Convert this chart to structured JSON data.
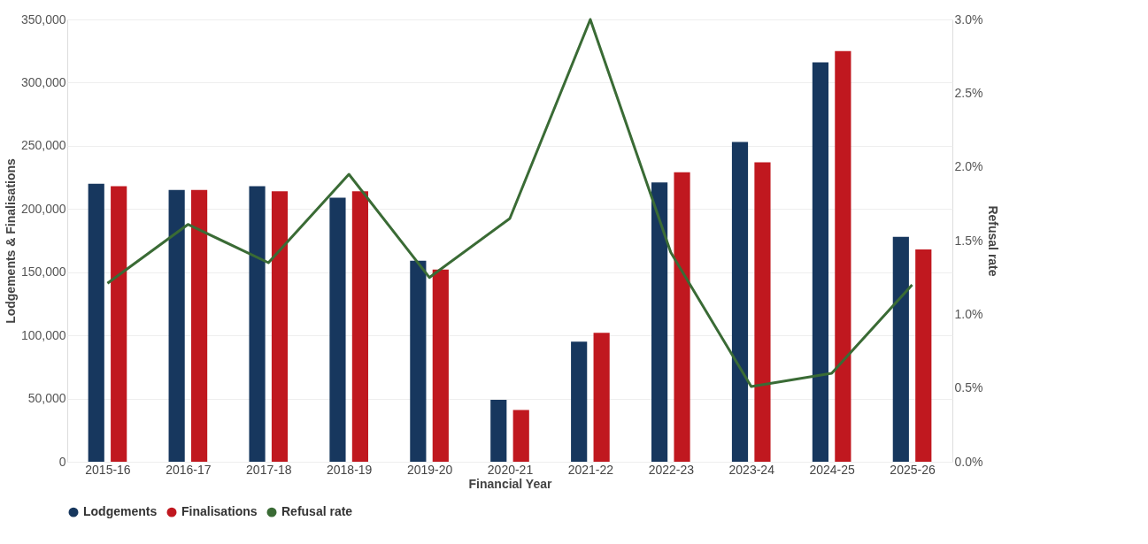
{
  "chart_data": {
    "type": "bar",
    "xlabel": "Financial Year",
    "ylabel": "Lodgements & Finalisations",
    "y2label": "Refusal rate",
    "categories": [
      "2015-16",
      "2016-17",
      "2017-18",
      "2018-19",
      "2019-20",
      "2020-21",
      "2021-22",
      "2022-23",
      "2023-24",
      "2024-25",
      "2025-26"
    ],
    "series": [
      {
        "name": "Lodgements",
        "color": "#17375e",
        "values": [
          220000,
          215000,
          218000,
          209000,
          159000,
          49000,
          95000,
          221000,
          253000,
          316000,
          178000
        ]
      },
      {
        "name": "Finalisations",
        "color": "#c0181f",
        "values": [
          218000,
          215000,
          214000,
          214000,
          152000,
          41000,
          102000,
          229000,
          237000,
          325000,
          168000
        ]
      },
      {
        "name": "Refusal rate",
        "type": "line",
        "axis": "y2",
        "color": "#3a6b35",
        "values": [
          1.21,
          1.61,
          1.35,
          1.95,
          1.25,
          1.65,
          3.0,
          1.42,
          0.51,
          0.6,
          1.2
        ]
      }
    ],
    "ylim": [
      0,
      350000
    ],
    "yticks": [
      {
        "value": 0,
        "label": "0"
      },
      {
        "value": 50000,
        "label": "50,000"
      },
      {
        "value": 100000,
        "label": "100,000"
      },
      {
        "value": 150000,
        "label": "150,000"
      },
      {
        "value": 200000,
        "label": "200,000"
      },
      {
        "value": 250000,
        "label": "250,000"
      },
      {
        "value": 300000,
        "label": "300,000"
      },
      {
        "value": 350000,
        "label": "350,000"
      }
    ],
    "y2lim": [
      0,
      3
    ],
    "y2ticks": [
      {
        "value": 0,
        "label": "0.0%"
      },
      {
        "value": 0.5,
        "label": "0.5%"
      },
      {
        "value": 1,
        "label": "1.0%"
      },
      {
        "value": 1.5,
        "label": "1.5%"
      },
      {
        "value": 2,
        "label": "2.0%"
      },
      {
        "value": 2.5,
        "label": "2.5%"
      },
      {
        "value": 3,
        "label": "3.0%"
      }
    ],
    "grid": "y",
    "legend": "bottom",
    "marker": "none",
    "line_style": "solid"
  }
}
